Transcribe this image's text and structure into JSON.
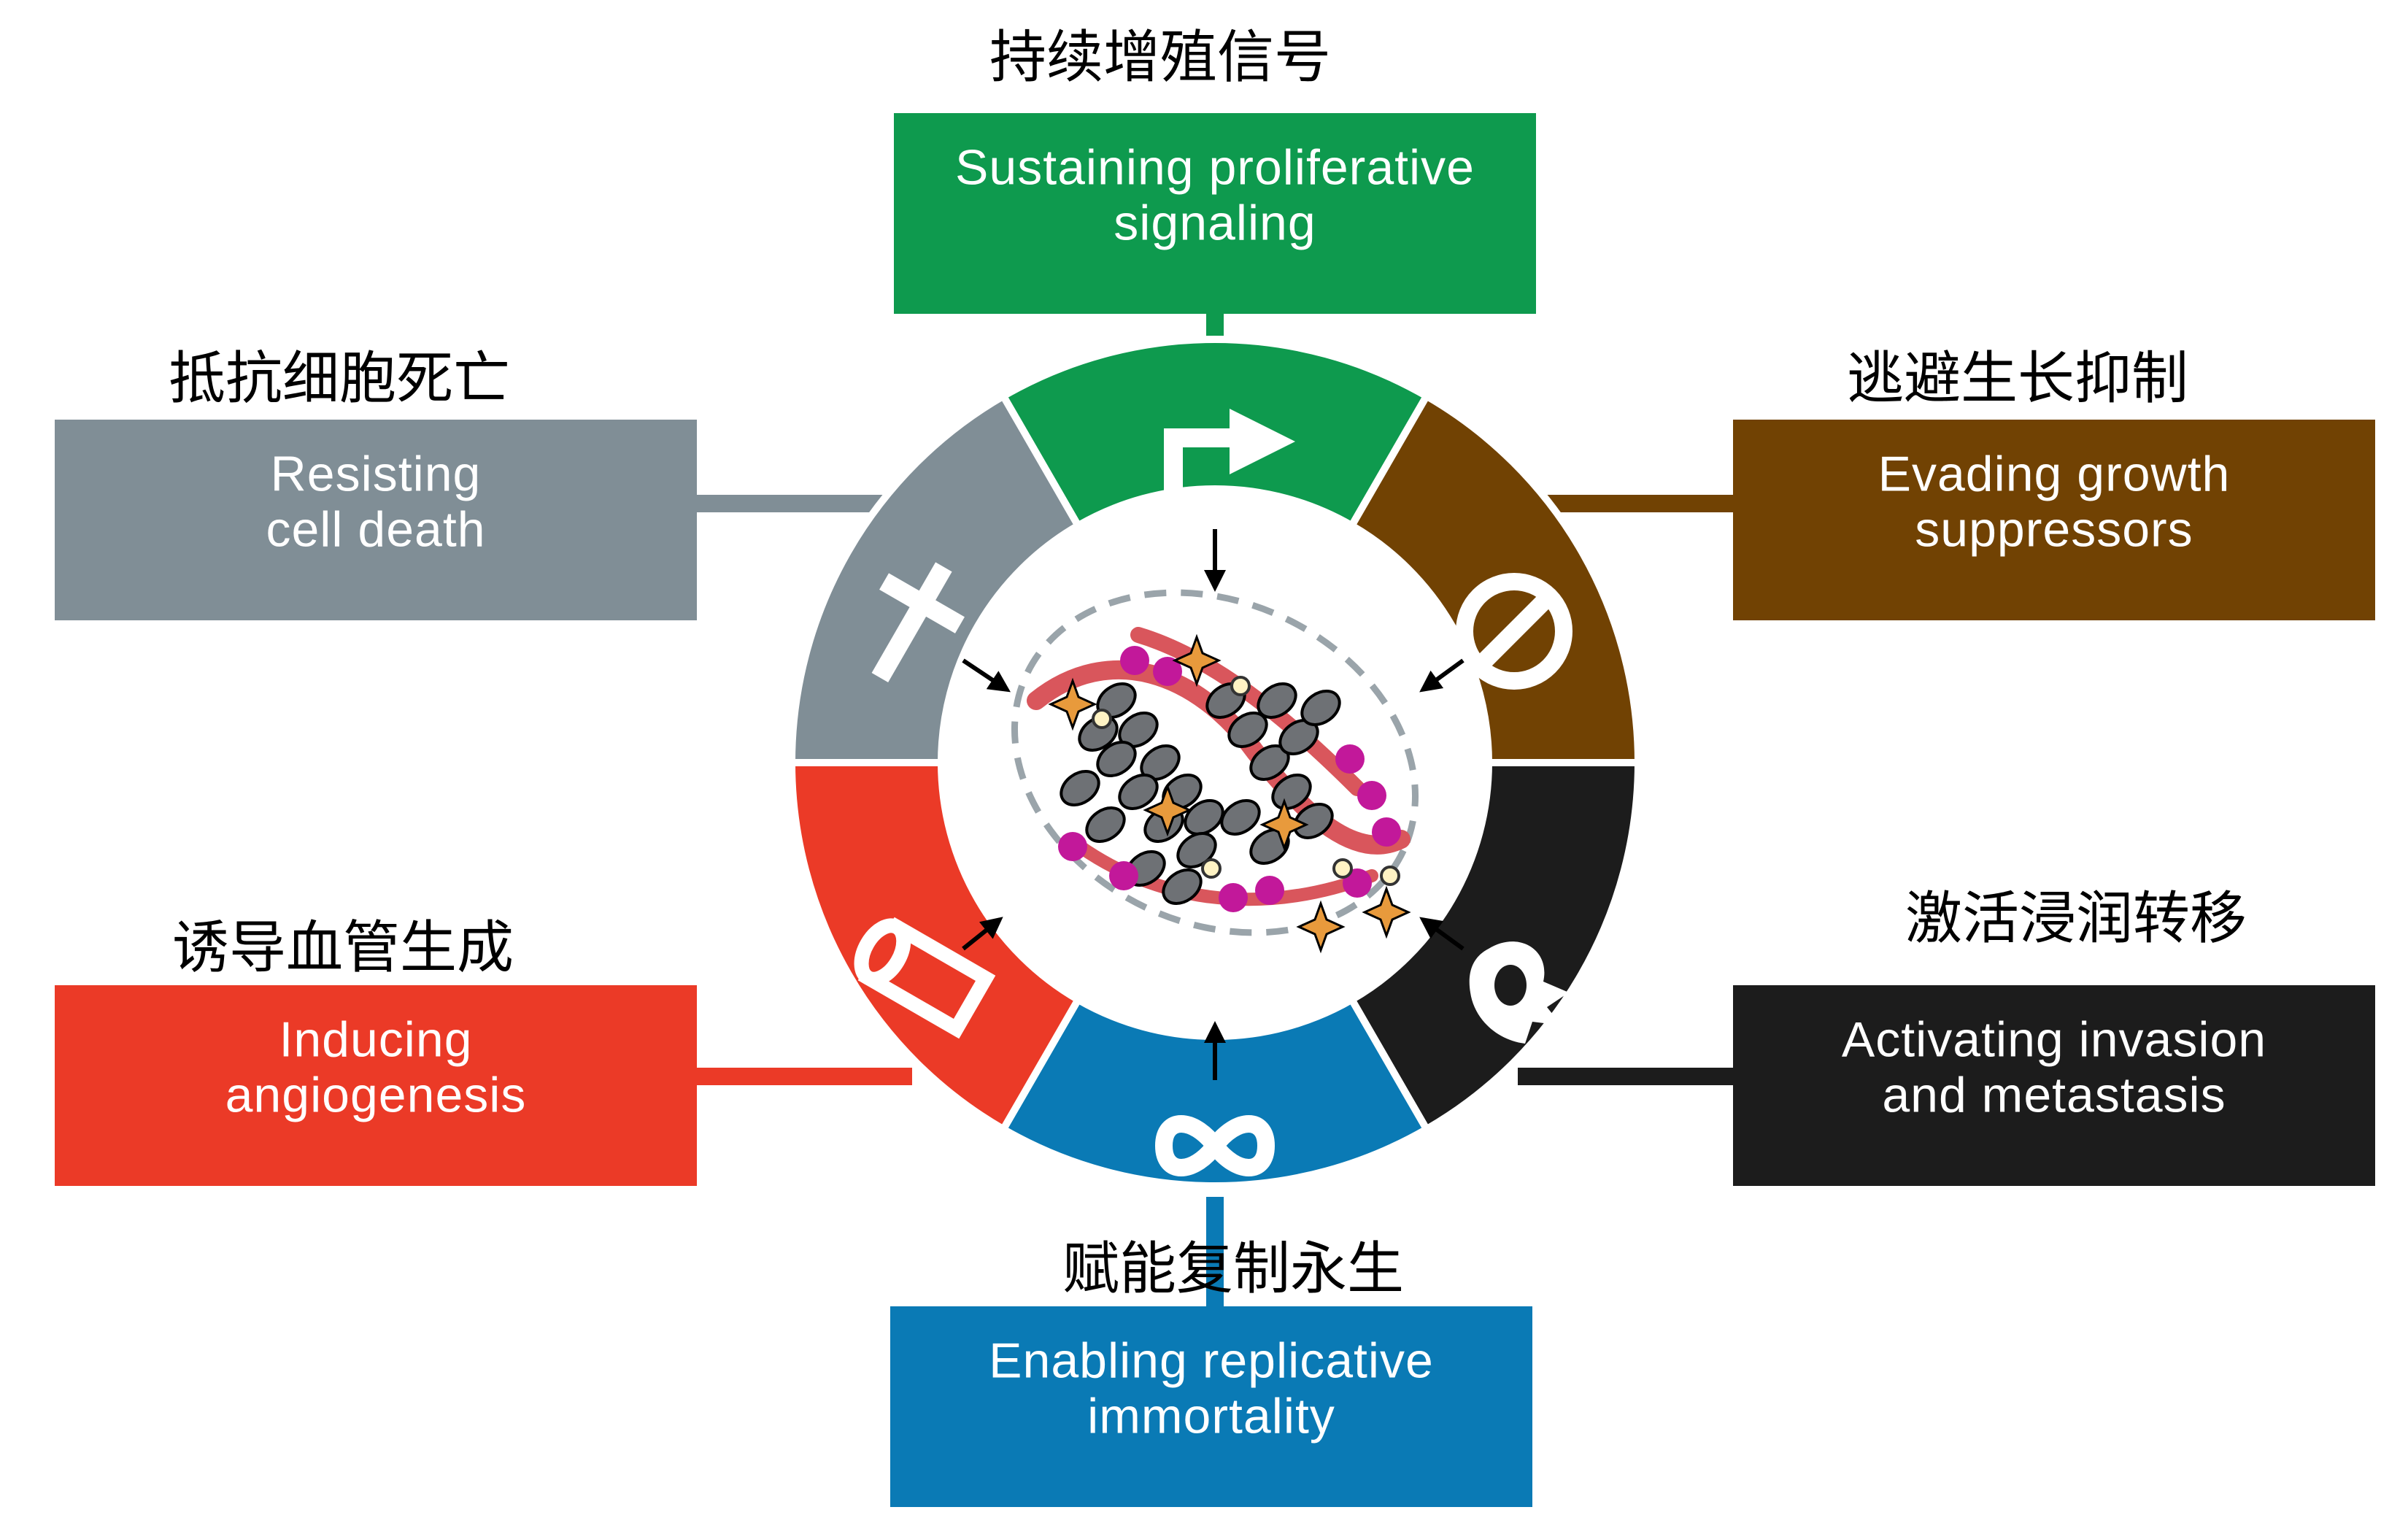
{
  "hallmarks": [
    {
      "id": "proliferative",
      "cn": "持续增殖信号",
      "en": [
        "Sustaining proliferative",
        "signaling"
      ],
      "color": "#0E9A4E",
      "icon": "bent-arrow-icon"
    },
    {
      "id": "growth-suppressors",
      "cn": "逃避生长抑制",
      "en": [
        "Evading growth",
        "suppressors"
      ],
      "color": "#714203",
      "icon": "prohibition-icon"
    },
    {
      "id": "invasion",
      "cn": "激活浸润转移",
      "en": [
        "Activating invasion",
        "and metastasis"
      ],
      "color": "#1C1C1C",
      "icon": "migrating-cell-icon"
    },
    {
      "id": "immortality",
      "cn": "赋能复制永生",
      "en": [
        "Enabling replicative",
        "immortality"
      ],
      "color": "#0A7AB5",
      "icon": "infinity-icon"
    },
    {
      "id": "angiogenesis",
      "cn": "诱导血管生成",
      "en": [
        "Inducing",
        "angiogenesis"
      ],
      "color": "#EB3A27",
      "icon": "blood-vessel-icon"
    },
    {
      "id": "cell-death",
      "cn": "抵抗细胞死亡",
      "en": [
        "Resisting",
        "cell death"
      ],
      "color": "#808E96",
      "icon": "cross-icon"
    }
  ],
  "colors": {
    "tumor_cell": "#6E7175",
    "stroma_cell": "#E89A3C",
    "vessel": "#D9565C",
    "immune_cell": "#C2189A",
    "dashed_border": "#9AA4AA"
  }
}
